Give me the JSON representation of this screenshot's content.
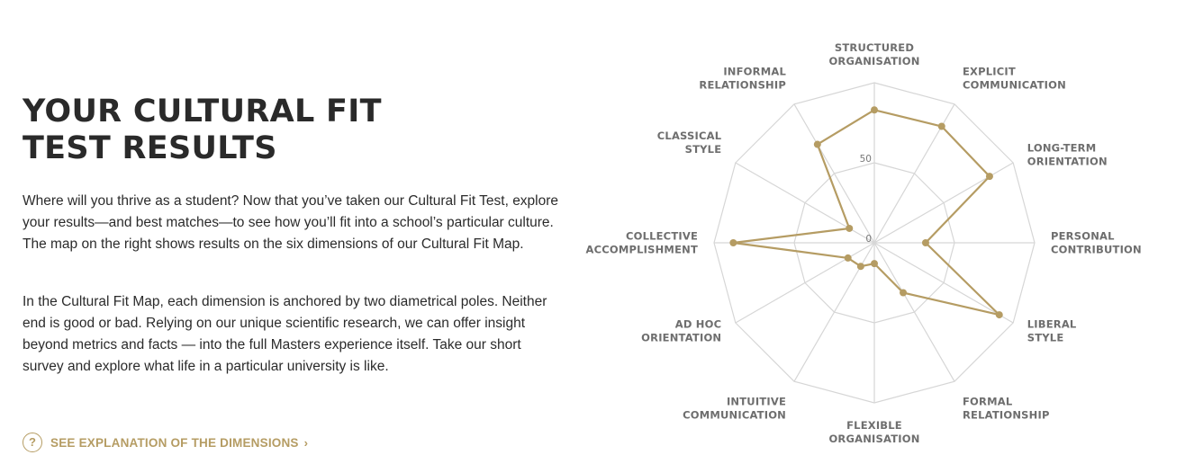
{
  "header": {
    "title_line1": "YOUR CULTURAL FIT",
    "title_line2": "TEST RESULTS"
  },
  "intro": {
    "paragraph1": "Where will you thrive as a student? Now that you’ve taken our Cultural Fit Test, explore your results—and best matches—to see how you’ll fit into a school’s particular culture. The map on the right shows results on the six dimensions of our Cultural Fit Map.",
    "paragraph2": "In the Cultural Fit Map, each dimension is anchored by two diametrical poles. Neither end is good or bad. Relying on our unique scientific research, we can offer insight beyond metrics and facts — into the full Masters experience itself. Take our short survey and explore what life in a particular university is like."
  },
  "explanation_link": {
    "icon": "question-circle-icon",
    "label": "SEE EXPLANATION OF THE DIMENSIONS",
    "chevron": "›"
  },
  "colors": {
    "accent": "#b59c63",
    "grid": "#d6d6d6",
    "text": "#2b2b2b"
  },
  "chart_data": {
    "type": "radar",
    "categories": [
      "STRUCTURED ORGANISATION",
      "EXPLICIT COMMUNICATION",
      "LONG-TERM ORIENTATION",
      "PERSONAL CONTRIBUTION",
      "LIBERAL STYLE",
      "FORMAL RELATIONSHIP",
      "FLEXIBLE ORGANISATION",
      "INTUITIVE COMMUNICATION",
      "AD HOC ORIENTATION",
      "COLLECTIVE ACCOMPLISHMENT",
      "CLASSICAL STYLE",
      "INFORMAL RELATIONSHIP"
    ],
    "label_lines": [
      [
        "STRUCTURED",
        "ORGANISATION"
      ],
      [
        "EXPLICIT",
        "COMMUNICATION"
      ],
      [
        "LONG-TERM",
        "ORIENTATION"
      ],
      [
        "PERSONAL",
        "CONTRIBUTION"
      ],
      [
        "LIBERAL",
        "STYLE"
      ],
      [
        "FORMAL",
        "RELATIONSHIP"
      ],
      [
        "FLEXIBLE",
        "ORGANISATION"
      ],
      [
        "INTUITIVE",
        "COMMUNICATION"
      ],
      [
        "AD HOC",
        "ORIENTATION"
      ],
      [
        "COLLECTIVE",
        "ACCOMPLISHMENT"
      ],
      [
        "CLASSICAL",
        "STYLE"
      ],
      [
        "INFORMAL",
        "RELATIONSHIP"
      ]
    ],
    "values": [
      83,
      84,
      83,
      32,
      90,
      36,
      13,
      17,
      19,
      88,
      18,
      71
    ],
    "range": [
      0,
      100
    ],
    "tick_values": [
      0,
      50
    ],
    "tick_labels": [
      "0",
      "50"
    ],
    "series_color": "#b59c63",
    "grid_color": "#d6d6d6"
  }
}
